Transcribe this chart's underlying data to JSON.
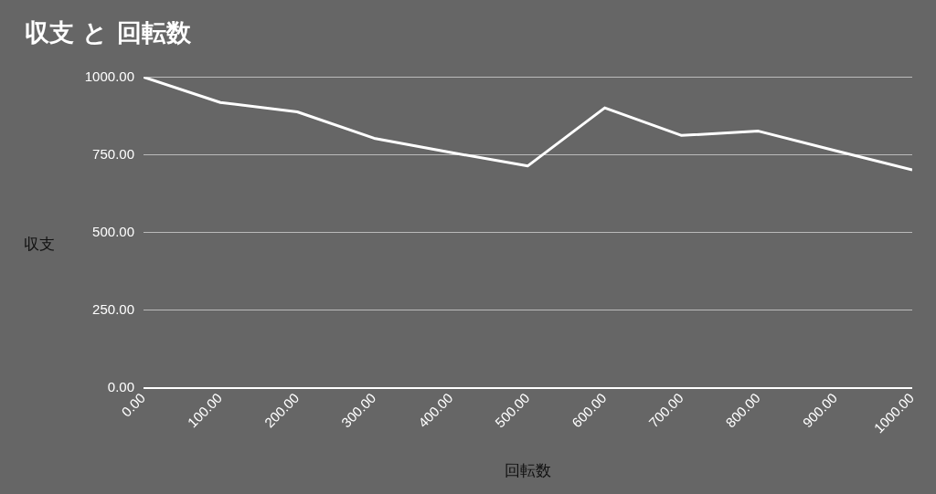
{
  "chart_data": {
    "type": "line",
    "title": "収支 と 回転数",
    "xlabel": "回転数",
    "ylabel": "収支",
    "x": [
      0,
      100,
      200,
      300,
      400,
      500,
      600,
      700,
      800,
      900,
      1000
    ],
    "series": [
      {
        "color": "#ffffff",
        "values": [
          1000,
          918,
          888,
          803,
          757,
          714,
          901,
          812,
          826,
          763,
          701
        ]
      }
    ],
    "xlim": [
      0,
      1000
    ],
    "xticks": [
      {
        "value": 0,
        "label": "0.00"
      },
      {
        "value": 100,
        "label": "100.00"
      },
      {
        "value": 200,
        "label": "200.00"
      },
      {
        "value": 300,
        "label": "300.00"
      },
      {
        "value": 400,
        "label": "400.00"
      },
      {
        "value": 500,
        "label": "500.00"
      },
      {
        "value": 600,
        "label": "600.00"
      },
      {
        "value": 700,
        "label": "700.00"
      },
      {
        "value": 800,
        "label": "800.00"
      },
      {
        "value": 900,
        "label": "900.00"
      },
      {
        "value": 1000,
        "label": "1000.00"
      }
    ],
    "ylim": [
      0,
      1000
    ],
    "yticks": [
      {
        "value": 0,
        "label": "0.00"
      },
      {
        "value": 250,
        "label": "250.00"
      },
      {
        "value": 500,
        "label": "500.00"
      },
      {
        "value": 750,
        "label": "750.00"
      },
      {
        "value": 1000,
        "label": "1000.00"
      }
    ],
    "grid": "y",
    "legend": false,
    "marker": "none",
    "line_style": "solid"
  }
}
